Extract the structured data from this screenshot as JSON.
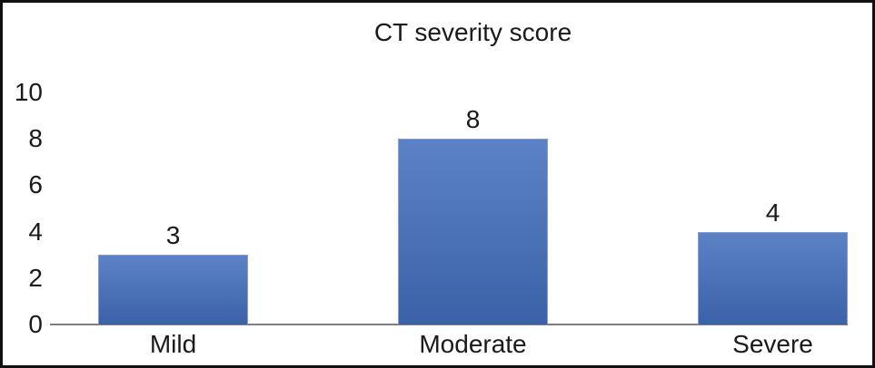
{
  "chart_data": {
    "type": "bar",
    "title": "CT severity score",
    "categories": [
      "Mild",
      "Moderate",
      "Severe"
    ],
    "values": [
      3,
      8,
      4
    ],
    "yticks": [
      0,
      2,
      4,
      6,
      8,
      10
    ],
    "ylim": [
      0,
      10
    ],
    "xlabel": "",
    "ylabel": "",
    "grid": false,
    "legend": "none",
    "colors": {
      "bar_gradient_top": "#5c82c6",
      "bar_gradient_bottom": "#3a62a8",
      "bar_border": "#8d99d3",
      "axis_line": "#7f7f7f",
      "text": "#1a1a1a",
      "frame_border": "#111111",
      "background": "#ffffff"
    }
  }
}
